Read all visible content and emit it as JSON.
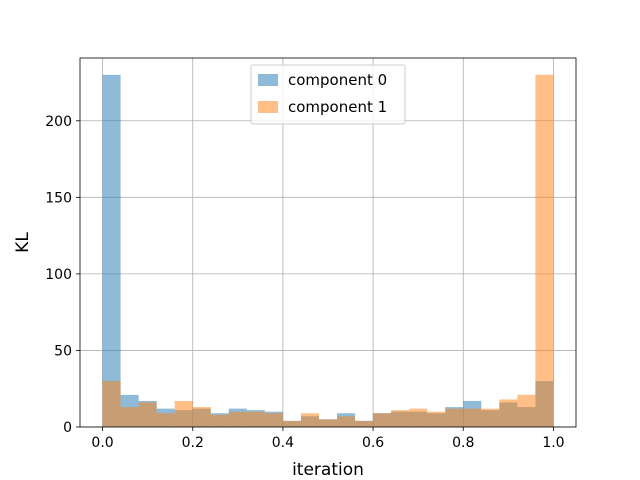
{
  "chart_data": {
    "type": "bar",
    "subtype": "overlaid-histogram",
    "xlabel": "iteration",
    "ylabel": "KL",
    "xlim": [
      -0.05,
      1.05
    ],
    "ylim": [
      0,
      241
    ],
    "x_ticks": [
      "0.0",
      "0.2",
      "0.4",
      "0.6",
      "0.8",
      "1.0"
    ],
    "y_ticks": [
      "0",
      "50",
      "100",
      "150",
      "200"
    ],
    "grid": true,
    "legend_position": "top-center",
    "bin_edges": [
      0.0,
      0.04,
      0.08,
      0.12,
      0.16,
      0.2,
      0.24,
      0.28,
      0.32,
      0.36,
      0.4,
      0.44,
      0.48,
      0.52,
      0.56,
      0.6,
      0.64,
      0.68,
      0.72,
      0.76,
      0.8,
      0.84,
      0.88,
      0.92,
      0.96,
      1.0
    ],
    "series": [
      {
        "name": "component 0",
        "color": "#1f77b4",
        "alpha": 0.5,
        "values": [
          230,
          21,
          17,
          12,
          11,
          12,
          9,
          12,
          11,
          10,
          4,
          7,
          5,
          9,
          4,
          9,
          10,
          10,
          9,
          13,
          17,
          11,
          16,
          13,
          30
        ]
      },
      {
        "name": "component 1",
        "color": "#ff7f0e",
        "alpha": 0.5,
        "values": [
          30,
          13,
          16,
          9,
          17,
          13,
          8,
          10,
          10,
          9,
          4,
          9,
          5,
          7,
          4,
          9,
          11,
          12,
          10,
          12,
          12,
          12,
          18,
          21,
          230
        ]
      }
    ]
  }
}
